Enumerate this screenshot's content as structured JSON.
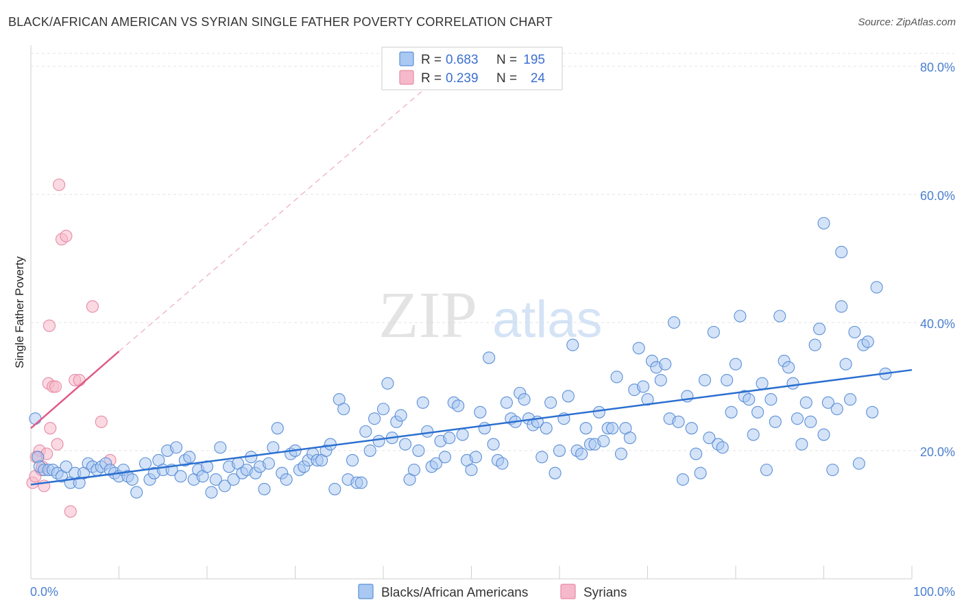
{
  "header": {
    "title": "BLACK/AFRICAN AMERICAN VS SYRIAN SINGLE FATHER POVERTY CORRELATION CHART",
    "source": "Source: ZipAtlas.com"
  },
  "watermark": {
    "zip": "ZIP",
    "atlas": "atlas"
  },
  "legend": {
    "r_label": "R =",
    "n_label": "N =",
    "rows": [
      {
        "r": "0.683",
        "n": "195",
        "color": "#a9c8f2"
      },
      {
        "r": "0.239",
        "n": "24",
        "color": "#f6b9cb"
      }
    ]
  },
  "chart_data": {
    "type": "scatter",
    "title": "BLACK/AFRICAN AMERICAN VS SYRIAN SINGLE FATHER POVERTY CORRELATION CHART",
    "xlabel": "",
    "ylabel": "Single Father Poverty",
    "xlim": [
      0,
      100
    ],
    "ylim": [
      0,
      82
    ],
    "x_tick_labels": [
      "0.0%",
      "100.0%"
    ],
    "y_ticks": [
      20,
      40,
      60,
      80
    ],
    "y_tick_labels": [
      "20.0%",
      "40.0%",
      "60.0%",
      "80.0%"
    ],
    "grid": true,
    "legend_position": "top-center",
    "colors": {
      "blue": "#5b8fd6",
      "blue_fill": "#a9c8f2",
      "blue_line": "#2b6fd0",
      "pink": "#e68aa5",
      "pink_fill": "#f6b9cb",
      "pink_line": "#e05a87"
    },
    "series": [
      {
        "name": "Blacks/African Americans",
        "r": 0.683,
        "n": 195,
        "trend": {
          "x": [
            0,
            100
          ],
          "y": [
            14.7,
            32.6
          ]
        },
        "points": [
          [
            0.5,
            25
          ],
          [
            0.8,
            19
          ],
          [
            1,
            17.5
          ],
          [
            1.5,
            17
          ],
          [
            2,
            17
          ],
          [
            2.5,
            17
          ],
          [
            3,
            16.5
          ],
          [
            3.5,
            16
          ],
          [
            4,
            17.5
          ],
          [
            4.5,
            15
          ],
          [
            5,
            16.5
          ],
          [
            5.5,
            15
          ],
          [
            6,
            16.5
          ],
          [
            6.5,
            18
          ],
          [
            7,
            17.5
          ],
          [
            7.5,
            17
          ],
          [
            8,
            17.5
          ],
          [
            8.5,
            18
          ],
          [
            9,
            17
          ],
          [
            9.5,
            16.5
          ],
          [
            10,
            16
          ],
          [
            10.5,
            17
          ],
          [
            11,
            16
          ],
          [
            11.5,
            15.5
          ],
          [
            12,
            13.5
          ],
          [
            13,
            18
          ],
          [
            13.5,
            15.5
          ],
          [
            14,
            16.5
          ],
          [
            14.5,
            18.5
          ],
          [
            15,
            17
          ],
          [
            15.5,
            20
          ],
          [
            16,
            17
          ],
          [
            16.5,
            20.5
          ],
          [
            17,
            16
          ],
          [
            17.5,
            18.5
          ],
          [
            18,
            19
          ],
          [
            18.5,
            15.5
          ],
          [
            19,
            17
          ],
          [
            19.5,
            16
          ],
          [
            20,
            17.5
          ],
          [
            20.5,
            13.5
          ],
          [
            21,
            15.5
          ],
          [
            21.5,
            20.5
          ],
          [
            22,
            14.5
          ],
          [
            22.5,
            17.5
          ],
          [
            23,
            15.5
          ],
          [
            23.5,
            18
          ],
          [
            24,
            16.5
          ],
          [
            24.5,
            17
          ],
          [
            25,
            19
          ],
          [
            25.5,
            16.5
          ],
          [
            26,
            17.5
          ],
          [
            26.5,
            14
          ],
          [
            27,
            18
          ],
          [
            27.5,
            20.5
          ],
          [
            28,
            23.5
          ],
          [
            28.5,
            16.5
          ],
          [
            29,
            15.5
          ],
          [
            29.5,
            19.5
          ],
          [
            30,
            20
          ],
          [
            30.5,
            17
          ],
          [
            31,
            17.5
          ],
          [
            31.5,
            18.5
          ],
          [
            32,
            19.5
          ],
          [
            32.5,
            18.5
          ],
          [
            33,
            18.5
          ],
          [
            33.5,
            20
          ],
          [
            34,
            21
          ],
          [
            34.5,
            14
          ],
          [
            35,
            28
          ],
          [
            35.5,
            26.5
          ],
          [
            36,
            15.5
          ],
          [
            36.5,
            18.5
          ],
          [
            37,
            15
          ],
          [
            37.5,
            15
          ],
          [
            38,
            23
          ],
          [
            38.5,
            20
          ],
          [
            39,
            25
          ],
          [
            39.5,
            21.5
          ],
          [
            40,
            26.5
          ],
          [
            40.5,
            30.5
          ],
          [
            41,
            22
          ],
          [
            41.5,
            24.5
          ],
          [
            42,
            25.5
          ],
          [
            42.5,
            21
          ],
          [
            43,
            15.5
          ],
          [
            43.5,
            17
          ],
          [
            44,
            20
          ],
          [
            44.5,
            27.5
          ],
          [
            45,
            23
          ],
          [
            45.5,
            17.5
          ],
          [
            46,
            18
          ],
          [
            46.5,
            21.5
          ],
          [
            47,
            19
          ],
          [
            47.5,
            22
          ],
          [
            48,
            27.5
          ],
          [
            48.5,
            27
          ],
          [
            49,
            22.5
          ],
          [
            49.5,
            18.5
          ],
          [
            50,
            17
          ],
          [
            50.5,
            19
          ],
          [
            51,
            26
          ],
          [
            51.5,
            23.5
          ],
          [
            52,
            34.5
          ],
          [
            52.5,
            21
          ],
          [
            53,
            18.5
          ],
          [
            53.5,
            18
          ],
          [
            54,
            27.5
          ],
          [
            54.5,
            25
          ],
          [
            55,
            24.5
          ],
          [
            55.5,
            29
          ],
          [
            56,
            28
          ],
          [
            56.5,
            25
          ],
          [
            57,
            24
          ],
          [
            57.5,
            24.5
          ],
          [
            58,
            19
          ],
          [
            58.5,
            23.5
          ],
          [
            59,
            27.5
          ],
          [
            59.5,
            16.5
          ],
          [
            60,
            20
          ],
          [
            60.5,
            25
          ],
          [
            61,
            28.5
          ],
          [
            61.5,
            36.5
          ],
          [
            62,
            20
          ],
          [
            62.5,
            19.5
          ],
          [
            63,
            23.5
          ],
          [
            63.5,
            21
          ],
          [
            64,
            21
          ],
          [
            64.5,
            26
          ],
          [
            65,
            21.5
          ],
          [
            65.5,
            23.5
          ],
          [
            66,
            23.5
          ],
          [
            66.5,
            31.5
          ],
          [
            67,
            19.5
          ],
          [
            67.5,
            23.5
          ],
          [
            68,
            22
          ],
          [
            68.5,
            29.5
          ],
          [
            69,
            36
          ],
          [
            69.5,
            30
          ],
          [
            70,
            28
          ],
          [
            70.5,
            34
          ],
          [
            71,
            33
          ],
          [
            71.5,
            31
          ],
          [
            72,
            33.5
          ],
          [
            72.5,
            25
          ],
          [
            73,
            40
          ],
          [
            73.5,
            24.5
          ],
          [
            74,
            15.5
          ],
          [
            74.5,
            28.5
          ],
          [
            75,
            23.5
          ],
          [
            75.5,
            19.5
          ],
          [
            76,
            16.5
          ],
          [
            76.5,
            31
          ],
          [
            77,
            22
          ],
          [
            77.5,
            38.5
          ],
          [
            78,
            21
          ],
          [
            78.5,
            20.5
          ],
          [
            79,
            31
          ],
          [
            79.5,
            26
          ],
          [
            80,
            33.5
          ],
          [
            80.5,
            41
          ],
          [
            81,
            28.5
          ],
          [
            81.5,
            28
          ],
          [
            82,
            22.5
          ],
          [
            82.5,
            26
          ],
          [
            83,
            30.5
          ],
          [
            83.5,
            17
          ],
          [
            84,
            28
          ],
          [
            84.5,
            24.5
          ],
          [
            85,
            41
          ],
          [
            85.5,
            34
          ],
          [
            86,
            33
          ],
          [
            86.5,
            30.5
          ],
          [
            87,
            25
          ],
          [
            87.5,
            21
          ],
          [
            88,
            27.5
          ],
          [
            88.5,
            24.5
          ],
          [
            89,
            36.5
          ],
          [
            89.5,
            39
          ],
          [
            90,
            22.5
          ],
          [
            90.5,
            27.5
          ],
          [
            91,
            17
          ],
          [
            91.5,
            26.5
          ],
          [
            92,
            42.5
          ],
          [
            92.5,
            33.5
          ],
          [
            93,
            28
          ],
          [
            93.5,
            38.5
          ],
          [
            94,
            18
          ],
          [
            94.5,
            36.5
          ],
          [
            95,
            37
          ],
          [
            95.5,
            26
          ],
          [
            96,
            45.5
          ],
          [
            97,
            32
          ],
          [
            90,
            55.5
          ],
          [
            92,
            51
          ]
        ]
      },
      {
        "name": "Syrians",
        "r": 0.239,
        "n": 24,
        "trend": {
          "x": [
            0,
            10
          ],
          "y": [
            23.5,
            35.5
          ]
        },
        "trend_ext": {
          "x": [
            10,
            46
          ],
          "y": [
            35.5,
            78
          ]
        },
        "points": [
          [
            0.2,
            15
          ],
          [
            0.5,
            16
          ],
          [
            0.8,
            19
          ],
          [
            1,
            20
          ],
          [
            1.2,
            17
          ],
          [
            1.5,
            14.5
          ],
          [
            1.8,
            19.5
          ],
          [
            2,
            30.5
          ],
          [
            2.2,
            23.5
          ],
          [
            2.5,
            30
          ],
          [
            2.8,
            30
          ],
          [
            3,
            21
          ],
          [
            3.2,
            61.5
          ],
          [
            3.5,
            53
          ],
          [
            4,
            53.5
          ],
          [
            4.5,
            10.5
          ],
          [
            5,
            31
          ],
          [
            5.5,
            31
          ],
          [
            7,
            42.5
          ],
          [
            8,
            24.5
          ],
          [
            9,
            18.5
          ],
          [
            2.1,
            39.5
          ],
          [
            0.6,
            19
          ],
          [
            1.3,
            17.5
          ]
        ]
      }
    ]
  },
  "bottom_legend": [
    {
      "label": "Blacks/African Americans"
    },
    {
      "label": "Syrians"
    }
  ]
}
